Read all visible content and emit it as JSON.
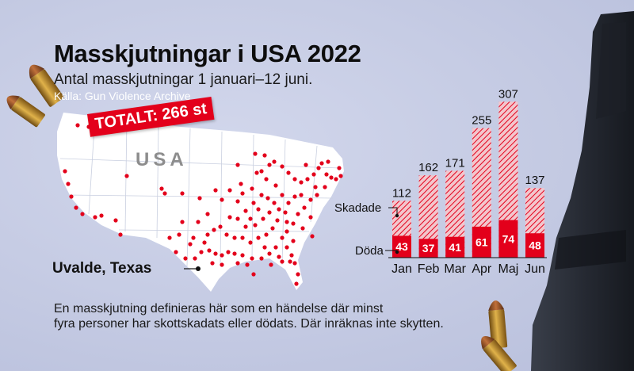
{
  "header": {
    "title": "Masskjutningar i USA 2022",
    "subtitle": "Antal masskjutningar 1 januari–12 juni.",
    "source": "Källa: Gun Violence Archive"
  },
  "map": {
    "total_badge": "TOTALT: 266 st",
    "country_label": "USA",
    "city_label": "Uvalde, Texas"
  },
  "footnote": {
    "line1": "En masskjutning definieras här som en händelse där minst",
    "line2": "fyra personer har skottskadats eller dödats. Där inräknas inte skytten."
  },
  "chart_data": {
    "type": "bar",
    "categories": [
      "Jan",
      "Feb",
      "Mar",
      "Apr",
      "Maj",
      "Jun"
    ],
    "series": [
      {
        "name": "Döda",
        "values": [
          43,
          37,
          41,
          61,
          74,
          48
        ]
      },
      {
        "name": "Skadade",
        "values": [
          112,
          162,
          171,
          255,
          307,
          137
        ]
      }
    ],
    "legend": [
      "Skadade",
      "Döda"
    ],
    "ylim": [
      0,
      320
    ]
  },
  "colors": {
    "red": "#e3001b",
    "map_land": "#ffffff",
    "background": "#c3c9e2"
  }
}
